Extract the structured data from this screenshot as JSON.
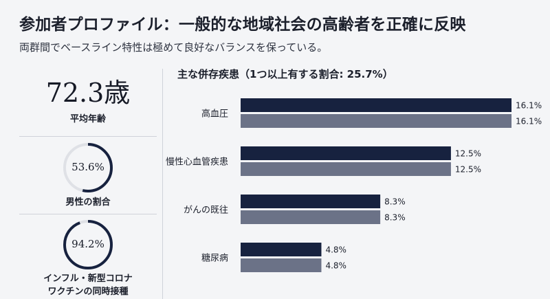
{
  "header": {
    "title": "参加者プロファイル：一般的な地域社会の高齢者を正確に反映",
    "subtitle": "両群間でベースライン特性は極めて良好なバランスを保っている。"
  },
  "stats": {
    "age": {
      "value": "72.3歳",
      "label": "平均年齢"
    },
    "male": {
      "value": "53.6%",
      "fraction": 0.536,
      "label": "男性の割合"
    },
    "vaccine": {
      "value": "94.2%",
      "fraction": 0.942,
      "label_line1": "インフル・新型コロナ",
      "label_line2": "ワクチンの同時接種"
    }
  },
  "colors": {
    "dark": "#17223f",
    "light": "#6b7287",
    "ring_track": "#dfe1e6"
  },
  "chart_data": {
    "type": "bar",
    "orientation": "horizontal",
    "title": "主な併存疾患（1つ以上有する割合: 25.7%）",
    "categories": [
      "高血圧",
      "慢性心血管疾患",
      "がんの既往",
      "糖尿病"
    ],
    "series": [
      {
        "values": [
          16.1,
          12.5,
          8.3,
          4.8
        ],
        "labels": [
          "16.1%",
          "12.5%",
          "8.3%",
          "4.8%"
        ],
        "color": "#17223f"
      },
      {
        "values": [
          16.1,
          12.5,
          8.3,
          4.8
        ],
        "labels": [
          "16.1%",
          "12.5%",
          "8.3%",
          "4.8%"
        ],
        "color": "#6b7287"
      }
    ],
    "xlim": [
      0,
      16.1
    ],
    "grid": false,
    "legend": "none"
  }
}
